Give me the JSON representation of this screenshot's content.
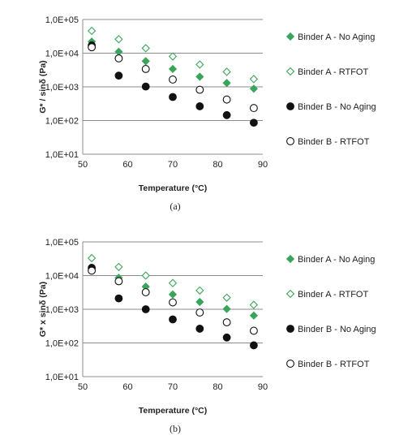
{
  "colors": {
    "binder_a": "#3aa55a",
    "binder_b": "#111111",
    "gridline": "#8c8c8c",
    "axis": "#8c8c8c",
    "text": "#222222"
  },
  "chart_data": [
    {
      "type": "scatter",
      "caption": "(a)",
      "xlabel": "Temperature (°C)",
      "ylabel": "G* / sinδ (Pa)",
      "xlim": [
        50,
        90
      ],
      "ylim": [
        10,
        100000
      ],
      "yscale": "log",
      "x_ticks": [
        "50",
        "60",
        "70",
        "80",
        "90"
      ],
      "y_ticks": [
        "1,0E+01",
        "1,0E+02",
        "1,0E+03",
        "1,0E+04",
        "1,0E+05"
      ],
      "grid": "horizontal",
      "legend_position": "right",
      "x": [
        52,
        58,
        64,
        70,
        76,
        82,
        88
      ],
      "series": [
        {
          "name": "Binder A - No Aging",
          "marker": "diamond-filled",
          "values": [
            22000,
            11000,
            5800,
            3400,
            2000,
            1300,
            880
          ]
        },
        {
          "name": "Binder A - RTFOT",
          "marker": "diamond-open",
          "values": [
            46000,
            26000,
            14000,
            8000,
            4600,
            2800,
            1700
          ]
        },
        {
          "name": "Binder B - No Aging",
          "marker": "circle-filled",
          "values": [
            17000,
            2150,
            1020,
            500,
            265,
            145,
            86
          ]
        },
        {
          "name": "Binder B - RTFOT",
          "marker": "circle-open",
          "values": [
            15000,
            7000,
            3400,
            1650,
            820,
            420,
            235
          ]
        }
      ]
    },
    {
      "type": "scatter",
      "caption": "(b)",
      "xlabel": "Temperature (°C)",
      "ylabel": "G* x sinδ (Pa)",
      "xlim": [
        50,
        90
      ],
      "ylim": [
        10,
        100000
      ],
      "yscale": "log",
      "x_ticks": [
        "50",
        "60",
        "70",
        "80",
        "90"
      ],
      "y_ticks": [
        "1,0E+01",
        "1,0E+02",
        "1,0E+03",
        "1,0E+04",
        "1,0E+05"
      ],
      "grid": "horizontal",
      "legend_position": "right",
      "x": [
        52,
        58,
        64,
        70,
        76,
        82,
        88
      ],
      "series": [
        {
          "name": "Binder A - No Aging",
          "marker": "diamond-filled",
          "values": [
            16000,
            8600,
            4700,
            2750,
            1650,
            1020,
            650
          ]
        },
        {
          "name": "Binder A - RTFOT",
          "marker": "diamond-open",
          "values": [
            33000,
            18000,
            10000,
            6000,
            3600,
            2200,
            1350
          ]
        },
        {
          "name": "Binder B - No Aging",
          "marker": "circle-filled",
          "values": [
            17000,
            2100,
            1000,
            500,
            265,
            145,
            85
          ]
        },
        {
          "name": "Binder B - RTFOT",
          "marker": "circle-open",
          "values": [
            14000,
            6800,
            3200,
            1600,
            800,
            410,
            230
          ]
        }
      ]
    }
  ]
}
